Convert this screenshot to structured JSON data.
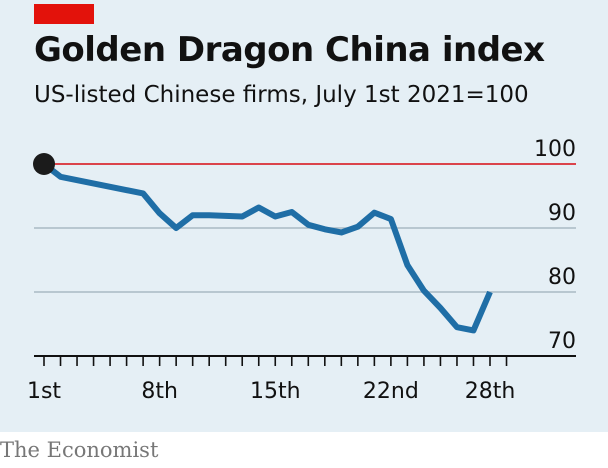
{
  "header": {
    "title": "Golden Dragon China index",
    "subtitle": "US-listed Chinese firms, July 1st 2021=100"
  },
  "footer": {
    "source": "The Economist"
  },
  "colors": {
    "background": "#e5eff5",
    "line": "#1f6ea6",
    "reference": "#db444b",
    "grid": "#a9bac4",
    "accent": "#e3120b",
    "marker": "#1b1b1b"
  },
  "chart_data": {
    "type": "line",
    "title": "Golden Dragon China index",
    "subtitle": "US-listed Chinese firms, July 1st 2021=100",
    "x_tick_labels": [
      {
        "day": 1,
        "label": "1st"
      },
      {
        "day": 8,
        "label": "8th"
      },
      {
        "day": 15,
        "label": "15th"
      },
      {
        "day": 22,
        "label": "22nd"
      },
      {
        "day": 28,
        "label": "28th"
      }
    ],
    "xlim": [
      1,
      30
    ],
    "ylim": [
      70,
      100
    ],
    "yticks": [
      70,
      80,
      90,
      100
    ],
    "reference_line": 100,
    "start_marker": {
      "day": 1,
      "value": 100
    },
    "series": [
      {
        "x": [
          1,
          2,
          7,
          8,
          9,
          10,
          11,
          12,
          13,
          14,
          15,
          16,
          17,
          18,
          19,
          20,
          21,
          22,
          23,
          24,
          25,
          26,
          27,
          28
        ],
        "values": [
          100,
          98.0,
          95.4,
          92.3,
          90.0,
          92.0,
          92.0,
          91.9,
          91.8,
          93.2,
          91.8,
          92.5,
          90.5,
          89.8,
          89.3,
          90.2,
          92.4,
          91.4,
          84.2,
          80.2,
          77.5,
          74.5,
          74.0,
          80.0
        ]
      }
    ]
  }
}
